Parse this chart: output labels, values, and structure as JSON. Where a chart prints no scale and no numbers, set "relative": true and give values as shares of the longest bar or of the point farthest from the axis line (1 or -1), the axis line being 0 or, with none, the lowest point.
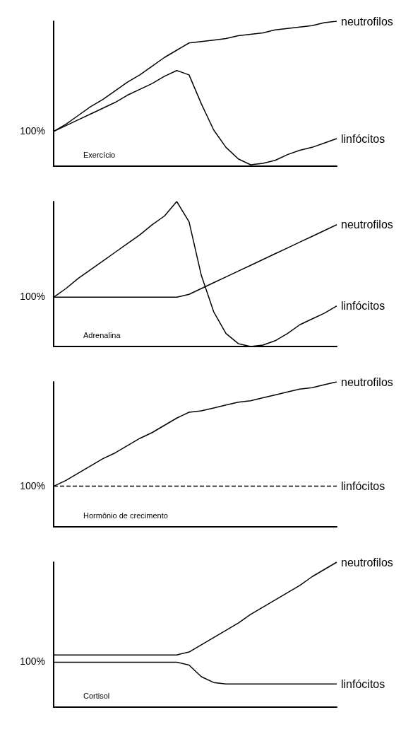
{
  "chart_data": [
    {
      "type": "line",
      "relative": true,
      "marker": "none",
      "categories": [
        null,
        null,
        null,
        null,
        null,
        null,
        null,
        null,
        null,
        null,
        null,
        null,
        null,
        null,
        null,
        null,
        null,
        null,
        null,
        null,
        null,
        null,
        null,
        null
      ],
      "series": [
        {
          "name": "neutrofilos",
          "color": "#000000",
          "values": [
            0.24,
            0.29,
            0.35,
            0.41,
            0.46,
            0.52,
            0.58,
            0.63,
            0.69,
            0.75,
            0.8,
            0.85,
            0.86,
            0.87,
            0.88,
            0.9,
            0.91,
            0.92,
            0.94,
            0.95,
            0.96,
            0.97,
            0.99,
            1.0
          ]
        },
        {
          "name": "linfócitos",
          "color": "#000000",
          "values": [
            0.24,
            0.28,
            0.32,
            0.36,
            0.4,
            0.44,
            0.49,
            0.53,
            0.57,
            0.62,
            0.66,
            0.63,
            0.43,
            0.25,
            0.13,
            0.05,
            0.01,
            0.02,
            0.04,
            0.08,
            0.11,
            0.13,
            0.16,
            0.19
          ]
        }
      ],
      "annotations": [
        "Exercício",
        "100%"
      ]
    },
    {
      "type": "line",
      "relative": true,
      "marker": "none",
      "categories": [
        null,
        null,
        null,
        null,
        null,
        null,
        null,
        null,
        null,
        null,
        null,
        null,
        null,
        null,
        null,
        null,
        null,
        null,
        null,
        null,
        null,
        null,
        null,
        null
      ],
      "series": [
        {
          "name": "neutrofilos",
          "color": "#000000",
          "values": [
            0.34,
            0.34,
            0.34,
            0.34,
            0.34,
            0.34,
            0.34,
            0.34,
            0.34,
            0.34,
            0.34,
            0.36,
            0.4,
            0.44,
            0.48,
            0.52,
            0.56,
            0.6,
            0.64,
            0.68,
            0.72,
            0.76,
            0.8,
            0.84
          ]
        },
        {
          "name": "linfócitos",
          "color": "#000000",
          "values": [
            0.34,
            0.4,
            0.47,
            0.53,
            0.59,
            0.65,
            0.71,
            0.77,
            0.84,
            0.9,
            1.0,
            0.86,
            0.49,
            0.24,
            0.09,
            0.02,
            0.0,
            0.01,
            0.04,
            0.09,
            0.15,
            0.19,
            0.23,
            0.28
          ]
        }
      ],
      "annotations": [
        "Adrenalina",
        "100%"
      ]
    },
    {
      "type": "line",
      "relative": true,
      "marker": "none",
      "categories": [
        null,
        null,
        null,
        null,
        null,
        null,
        null,
        null,
        null,
        null,
        null,
        null,
        null,
        null,
        null,
        null,
        null,
        null,
        null,
        null,
        null,
        null,
        null,
        null
      ],
      "series": [
        {
          "name": "neutrofilos",
          "color": "#000000",
          "values": [
            0.28,
            0.32,
            0.37,
            0.42,
            0.47,
            0.51,
            0.56,
            0.61,
            0.65,
            0.7,
            0.75,
            0.79,
            0.8,
            0.82,
            0.84,
            0.86,
            0.87,
            0.89,
            0.91,
            0.93,
            0.95,
            0.96,
            0.98,
            1.0
          ]
        },
        {
          "name": "linfócitos",
          "color": "#000000",
          "line_style": "dashed",
          "values": [
            0.28,
            0.28,
            0.28,
            0.28,
            0.28,
            0.28,
            0.28,
            0.28,
            0.28,
            0.28,
            0.28,
            0.28,
            0.28,
            0.28,
            0.28,
            0.28,
            0.28,
            0.28,
            0.28,
            0.28,
            0.28,
            0.28,
            0.28,
            0.28
          ]
        }
      ],
      "annotations": [
        "Hormônio de crecimento",
        "100%"
      ]
    },
    {
      "type": "line",
      "relative": true,
      "marker": "none",
      "categories": [
        null,
        null,
        null,
        null,
        null,
        null,
        null,
        null,
        null,
        null,
        null,
        null,
        null,
        null,
        null,
        null,
        null,
        null,
        null,
        null,
        null,
        null,
        null,
        null
      ],
      "series": [
        {
          "name": "neutrofilos",
          "color": "#000000",
          "values": [
            0.36,
            0.36,
            0.36,
            0.36,
            0.36,
            0.36,
            0.36,
            0.36,
            0.36,
            0.36,
            0.36,
            0.38,
            0.43,
            0.48,
            0.53,
            0.58,
            0.64,
            0.69,
            0.74,
            0.79,
            0.84,
            0.9,
            0.95,
            1.0
          ]
        },
        {
          "name": "linfócitos",
          "color": "#000000",
          "values": [
            0.31,
            0.31,
            0.31,
            0.31,
            0.31,
            0.31,
            0.31,
            0.31,
            0.31,
            0.31,
            0.31,
            0.29,
            0.21,
            0.17,
            0.16,
            0.16,
            0.16,
            0.16,
            0.16,
            0.16,
            0.16,
            0.16,
            0.16,
            0.16
          ]
        }
      ],
      "annotations": [
        "Cortisol",
        "100%"
      ]
    }
  ]
}
